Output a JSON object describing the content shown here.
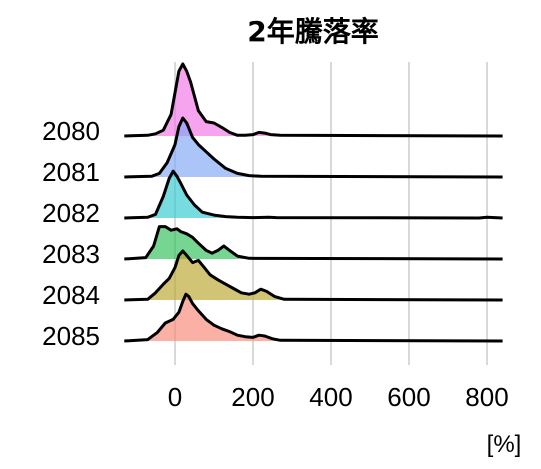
{
  "chart_data": {
    "type": "ridgeline",
    "title": "2年騰落率",
    "unit_label": "[%]",
    "xlabel": "",
    "ylabel": "",
    "xlim": [
      -130,
      840
    ],
    "x_ticks": [
      0,
      200,
      400,
      600,
      800
    ],
    "x_tick_labels": [
      "0",
      "200",
      "400",
      "600",
      "800"
    ],
    "grid": true,
    "legend": "none",
    "series": [
      {
        "name": "2080",
        "color": "#f273e6",
        "density": [
          [
            -130,
            0
          ],
          [
            -70,
            0.01
          ],
          [
            -50,
            0.03
          ],
          [
            -30,
            0.08
          ],
          [
            -10,
            0.3
          ],
          [
            0,
            0.6
          ],
          [
            10,
            0.9
          ],
          [
            20,
            1.0
          ],
          [
            30,
            0.9
          ],
          [
            40,
            0.75
          ],
          [
            50,
            0.55
          ],
          [
            60,
            0.35
          ],
          [
            80,
            0.2
          ],
          [
            100,
            0.18
          ],
          [
            120,
            0.12
          ],
          [
            140,
            0.05
          ],
          [
            160,
            0.01
          ],
          [
            180,
            0.01
          ],
          [
            200,
            0.02
          ],
          [
            215,
            0.05
          ],
          [
            230,
            0.04
          ],
          [
            245,
            0.02
          ],
          [
            270,
            0.01
          ],
          [
            840,
            0
          ]
        ]
      },
      {
        "name": "2081",
        "color": "#7fa6f6",
        "density": [
          [
            -130,
            0
          ],
          [
            -60,
            0.01
          ],
          [
            -40,
            0.05
          ],
          [
            -20,
            0.2
          ],
          [
            0,
            0.45
          ],
          [
            10,
            0.7
          ],
          [
            20,
            0.82
          ],
          [
            30,
            0.75
          ],
          [
            45,
            0.55
          ],
          [
            60,
            0.45
          ],
          [
            80,
            0.35
          ],
          [
            100,
            0.25
          ],
          [
            130,
            0.12
          ],
          [
            160,
            0.05
          ],
          [
            190,
            0.02
          ],
          [
            220,
            0.01
          ],
          [
            840,
            0
          ]
        ]
      },
      {
        "name": "2082",
        "color": "#2ec8cf",
        "density": [
          [
            -130,
            0
          ],
          [
            -70,
            0.01
          ],
          [
            -50,
            0.05
          ],
          [
            -30,
            0.3
          ],
          [
            -15,
            0.55
          ],
          [
            -5,
            0.65
          ],
          [
            5,
            0.58
          ],
          [
            15,
            0.48
          ],
          [
            30,
            0.32
          ],
          [
            50,
            0.18
          ],
          [
            70,
            0.08
          ],
          [
            100,
            0.04
          ],
          [
            130,
            0.02
          ],
          [
            160,
            0.01
          ],
          [
            200,
            0.005
          ],
          [
            240,
            0.01
          ],
          [
            260,
            0.005
          ],
          [
            780,
            0
          ],
          [
            800,
            0.01
          ],
          [
            820,
            0.005
          ],
          [
            840,
            0
          ]
        ]
      },
      {
        "name": "2083",
        "color": "#2cbf55",
        "density": [
          [
            -130,
            0
          ],
          [
            -75,
            0.02
          ],
          [
            -55,
            0.18
          ],
          [
            -40,
            0.45
          ],
          [
            -25,
            0.45
          ],
          [
            -10,
            0.4
          ],
          [
            5,
            0.42
          ],
          [
            15,
            0.38
          ],
          [
            30,
            0.35
          ],
          [
            45,
            0.3
          ],
          [
            60,
            0.22
          ],
          [
            80,
            0.12
          ],
          [
            95,
            0.08
          ],
          [
            110,
            0.12
          ],
          [
            125,
            0.18
          ],
          [
            140,
            0.12
          ],
          [
            160,
            0.04
          ],
          [
            190,
            0.01
          ],
          [
            840,
            0
          ]
        ]
      },
      {
        "name": "2084",
        "color": "#b9a42a",
        "density": [
          [
            -130,
            0
          ],
          [
            -70,
            0.01
          ],
          [
            -50,
            0.1
          ],
          [
            -30,
            0.22
          ],
          [
            -15,
            0.3
          ],
          [
            0,
            0.45
          ],
          [
            10,
            0.62
          ],
          [
            20,
            0.68
          ],
          [
            30,
            0.62
          ],
          [
            45,
            0.52
          ],
          [
            60,
            0.55
          ],
          [
            75,
            0.45
          ],
          [
            90,
            0.35
          ],
          [
            110,
            0.28
          ],
          [
            130,
            0.22
          ],
          [
            150,
            0.16
          ],
          [
            170,
            0.1
          ],
          [
            190,
            0.08
          ],
          [
            205,
            0.1
          ],
          [
            220,
            0.15
          ],
          [
            235,
            0.12
          ],
          [
            255,
            0.05
          ],
          [
            280,
            0.01
          ],
          [
            840,
            0
          ]
        ]
      },
      {
        "name": "2085",
        "color": "#f78575",
        "density": [
          [
            -130,
            0
          ],
          [
            -70,
            0.02
          ],
          [
            -45,
            0.12
          ],
          [
            -25,
            0.25
          ],
          [
            -5,
            0.3
          ],
          [
            10,
            0.4
          ],
          [
            20,
            0.55
          ],
          [
            28,
            0.65
          ],
          [
            35,
            0.62
          ],
          [
            45,
            0.52
          ],
          [
            60,
            0.42
          ],
          [
            80,
            0.3
          ],
          [
            100,
            0.22
          ],
          [
            120,
            0.17
          ],
          [
            140,
            0.13
          ],
          [
            160,
            0.08
          ],
          [
            180,
            0.06
          ],
          [
            200,
            0.05
          ],
          [
            215,
            0.08
          ],
          [
            230,
            0.07
          ],
          [
            250,
            0.03
          ],
          [
            270,
            0.01
          ],
          [
            840,
            0
          ]
        ]
      }
    ]
  }
}
